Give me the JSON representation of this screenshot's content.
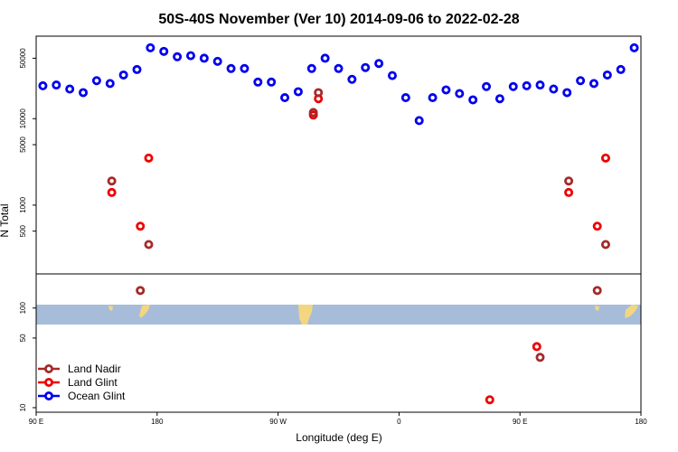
{
  "chart_data": {
    "type": "scatter",
    "title": "50S-40S November (Ver 10)   2014-09-06 to 2022-02-28",
    "xlabel": "Longitude (deg E)",
    "ylabel": "N Total",
    "xlim": [
      90,
      450
    ],
    "x_ticks": [
      {
        "value": 90,
        "label": "90 E"
      },
      {
        "value": 162,
        "label": "180"
      },
      {
        "value": 234,
        "label": "90 W"
      },
      {
        "value": 306,
        "label": "0"
      },
      {
        "value": 378,
        "label": "90 E"
      },
      {
        "value": 450,
        "label": "180"
      }
    ],
    "y_scale": "log",
    "upper_panel": {
      "ylim": [
        160,
        90000
      ],
      "y_ticks": [
        {
          "value": 500,
          "label": "500"
        },
        {
          "value": 1000,
          "label": "1000"
        },
        {
          "value": 5000,
          "label": "5000"
        },
        {
          "value": 10000,
          "label": "10000"
        },
        {
          "value": 50000,
          "label": "50000"
        }
      ]
    },
    "lower_panel": {
      "ylim": [
        9,
        220
      ],
      "y_ticks": [
        {
          "value": 10,
          "label": "10"
        },
        {
          "value": 50,
          "label": "50"
        },
        {
          "value": 100,
          "label": "100"
        }
      ]
    },
    "legend_position": "bottom-left",
    "series": [
      {
        "name": "Ocean Glint",
        "color": "#0000ee",
        "points": [
          [
            94,
            24000
          ],
          [
            102,
            24500
          ],
          [
            110,
            22000
          ],
          [
            118,
            20000
          ],
          [
            126,
            27500
          ],
          [
            134,
            25500
          ],
          [
            142,
            32000
          ],
          [
            150,
            37000
          ],
          [
            158,
            66000
          ],
          [
            166,
            60000
          ],
          [
            174,
            52000
          ],
          [
            182,
            53500
          ],
          [
            190,
            50000
          ],
          [
            198,
            46000
          ],
          [
            206,
            38000
          ],
          [
            214,
            38000
          ],
          [
            222,
            26500
          ],
          [
            230,
            26500
          ],
          [
            238,
            17500
          ],
          [
            246,
            20500
          ],
          [
            254,
            38000
          ],
          [
            262,
            50000
          ],
          [
            270,
            38000
          ],
          [
            278,
            28500
          ],
          [
            286,
            39000
          ],
          [
            294,
            43500
          ],
          [
            302,
            31500
          ],
          [
            310,
            17500
          ],
          [
            318,
            9500
          ],
          [
            326,
            17500
          ],
          [
            334,
            21500
          ],
          [
            342,
            19500
          ],
          [
            350,
            16500
          ],
          [
            358,
            23500
          ],
          [
            366,
            17000
          ],
          [
            374,
            23500
          ],
          [
            382,
            24000
          ],
          [
            390,
            24500
          ],
          [
            398,
            22000
          ],
          [
            406,
            20000
          ],
          [
            414,
            27500
          ],
          [
            422,
            25500
          ],
          [
            430,
            32000
          ],
          [
            438,
            37000
          ],
          [
            446,
            66000
          ]
        ]
      },
      {
        "name": "Land Glint",
        "color": "#ee0000",
        "points": [
          [
            135,
            1400
          ],
          [
            152,
            570
          ],
          [
            157,
            3500
          ],
          [
            255,
            11000
          ],
          [
            258,
            17000
          ],
          [
            407,
            1400
          ],
          [
            424,
            570
          ],
          [
            429,
            3500
          ],
          [
            388,
            41
          ],
          [
            360,
            12
          ]
        ]
      },
      {
        "name": "Land Nadir",
        "color": "#a52a2a",
        "points": [
          [
            135,
            1900
          ],
          [
            152,
            150
          ],
          [
            157,
            350
          ],
          [
            255,
            11800
          ],
          [
            258,
            20000
          ],
          [
            407,
            1900
          ],
          [
            424,
            150
          ],
          [
            429,
            350
          ],
          [
            390,
            32
          ]
        ]
      }
    ]
  }
}
